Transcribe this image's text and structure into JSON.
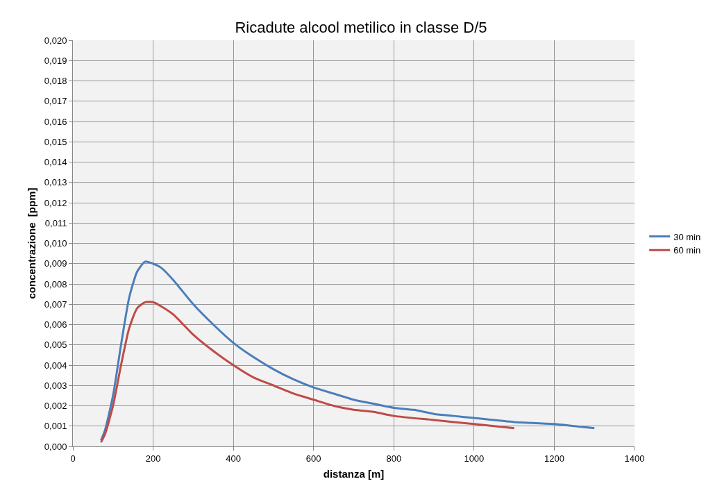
{
  "chart_data": {
    "type": "line",
    "title": "Ricadute alcool metilico in classe D/5",
    "xlabel": "distanza [m]",
    "ylabel": "concentrazione  [ppm]",
    "xlim": [
      0,
      1400
    ],
    "xticks": [
      0,
      200,
      400,
      600,
      800,
      1000,
      1200,
      1400
    ],
    "ylim": [
      0,
      0.02
    ],
    "yticks": [
      {
        "value": 0,
        "label": "0,000"
      },
      {
        "value": 0.001,
        "label": "0,001"
      },
      {
        "value": 0.002,
        "label": "0,002"
      },
      {
        "value": 0.003,
        "label": "0,003"
      },
      {
        "value": 0.004,
        "label": "0,004"
      },
      {
        "value": 0.005,
        "label": "0,005"
      },
      {
        "value": 0.006,
        "label": "0,006"
      },
      {
        "value": 0.007,
        "label": "0,007"
      },
      {
        "value": 0.008,
        "label": "0,008"
      },
      {
        "value": 0.009,
        "label": "0,009"
      },
      {
        "value": 0.01,
        "label": "0,010"
      },
      {
        "value": 0.011,
        "label": "0,011"
      },
      {
        "value": 0.012,
        "label": "0,012"
      },
      {
        "value": 0.013,
        "label": "0,013"
      },
      {
        "value": 0.014,
        "label": "0,014"
      },
      {
        "value": 0.015,
        "label": "0,015"
      },
      {
        "value": 0.016,
        "label": "0,016"
      },
      {
        "value": 0.017,
        "label": "0,017"
      },
      {
        "value": 0.018,
        "label": "0,018"
      },
      {
        "value": 0.019,
        "label": "0,019"
      },
      {
        "value": 0.02,
        "label": "0,020"
      }
    ],
    "grid": true,
    "legend": "right",
    "marker": "none",
    "line_style": "solid",
    "series": [
      {
        "name": "30 min",
        "color": "#4a7ebb",
        "x": [
          70,
          80,
          100,
          120,
          140,
          160,
          180,
          200,
          220,
          250,
          300,
          350,
          400,
          450,
          500,
          550,
          600,
          650,
          700,
          750,
          800,
          850,
          900,
          950,
          1000,
          1100,
          1200,
          1250,
          1300
        ],
        "values": [
          0.0003,
          0.0008,
          0.0025,
          0.005,
          0.0073,
          0.0086,
          0.0091,
          0.009,
          0.0088,
          0.0082,
          0.007,
          0.006,
          0.0051,
          0.0044,
          0.0038,
          0.0033,
          0.0029,
          0.0026,
          0.0023,
          0.0021,
          0.0019,
          0.0018,
          0.0016,
          0.0015,
          0.0014,
          0.0012,
          0.0011,
          0.001,
          0.0009
        ]
      },
      {
        "name": "60 min",
        "color": "#be4b48",
        "x": [
          70,
          80,
          100,
          120,
          140,
          160,
          180,
          200,
          220,
          250,
          300,
          350,
          400,
          450,
          500,
          550,
          600,
          650,
          700,
          750,
          800,
          900,
          1000,
          1100
        ],
        "values": [
          0.0002,
          0.0006,
          0.002,
          0.004,
          0.0058,
          0.0068,
          0.0071,
          0.0071,
          0.0069,
          0.0065,
          0.0055,
          0.0047,
          0.004,
          0.0034,
          0.003,
          0.0026,
          0.0023,
          0.002,
          0.0018,
          0.0017,
          0.0015,
          0.0013,
          0.0011,
          0.0009
        ]
      }
    ]
  }
}
